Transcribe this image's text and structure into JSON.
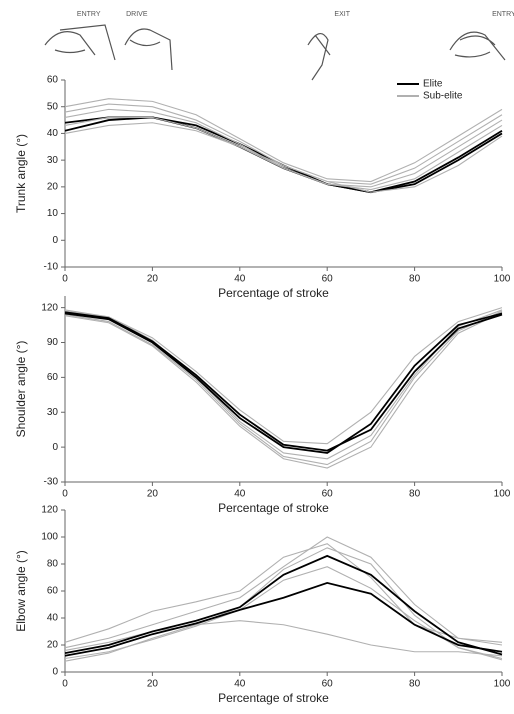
{
  "chart_data": [
    {
      "type": "line",
      "ylabel": "Trunk angle (°)",
      "xlabel": "Percentage of stroke",
      "annotations": [
        {
          "label": "ENTRY",
          "x": 2
        },
        {
          "label": "DRIVE",
          "x": 13
        },
        {
          "label": "EXIT",
          "x": 60
        },
        {
          "label": "ENTRY",
          "x": 97
        }
      ],
      "x": [
        0,
        10,
        20,
        30,
        40,
        50,
        60,
        70,
        80,
        90,
        100
      ],
      "xlim": [
        0,
        100
      ],
      "xticks": [
        0,
        20,
        40,
        60,
        80,
        100
      ],
      "ylim": [
        -10,
        60
      ],
      "yticks": [
        -10,
        0,
        10,
        20,
        30,
        40,
        50,
        60
      ],
      "legend": "upper right",
      "series": [
        {
          "name": "Elite",
          "color": "#000000",
          "values": [
            41,
            45,
            46,
            43,
            36,
            28,
            21,
            18,
            22,
            31,
            41
          ]
        },
        {
          "name": "Sub-elite",
          "color": "#b0b0b0",
          "values": [
            48,
            51,
            50,
            45,
            37,
            28,
            22,
            21,
            27,
            37,
            47
          ]
        },
        {
          "color": "#000000",
          "values": [
            44,
            46,
            46,
            42,
            35,
            27,
            21,
            18,
            21,
            30,
            40
          ]
        },
        {
          "color": "#b0b0b0",
          "values": [
            46,
            49,
            48,
            44,
            36,
            27,
            21,
            20,
            25,
            35,
            45
          ]
        },
        {
          "color": "#b0b0b0",
          "values": [
            43,
            46,
            46,
            42,
            35,
            27,
            21,
            19,
            23,
            33,
            43
          ]
        },
        {
          "color": "#b0b0b0",
          "values": [
            40,
            43,
            44,
            41,
            35,
            28,
            22,
            18,
            20,
            28,
            39
          ]
        },
        {
          "color": "#b0b0b0",
          "values": [
            50,
            53,
            52,
            47,
            38,
            29,
            23,
            22,
            29,
            39,
            49
          ]
        }
      ]
    },
    {
      "type": "line",
      "ylabel": "Shoulder angle (°)",
      "xlabel": "Percentage of stroke",
      "x": [
        0,
        10,
        20,
        30,
        40,
        50,
        60,
        70,
        80,
        90,
        100
      ],
      "xlim": [
        0,
        100
      ],
      "xticks": [
        0,
        20,
        40,
        60,
        80,
        100
      ],
      "ylim": [
        -30,
        130
      ],
      "yticks": [
        -30,
        0,
        30,
        60,
        90,
        120
      ],
      "series": [
        {
          "color": "#b0b0b0",
          "values": [
            118,
            112,
            92,
            60,
            22,
            -5,
            -10,
            10,
            62,
            104,
            118
          ]
        },
        {
          "color": "#b0b0b0",
          "values": [
            114,
            108,
            88,
            58,
            20,
            -8,
            -15,
            5,
            60,
            100,
            117
          ]
        },
        {
          "color": "#b0b0b0",
          "values": [
            117,
            112,
            94,
            65,
            32,
            5,
            3,
            30,
            78,
            108,
            120
          ]
        },
        {
          "color": "#b0b0b0",
          "values": [
            113,
            107,
            87,
            56,
            18,
            -10,
            -18,
            0,
            55,
            98,
            116
          ]
        },
        {
          "color": "#000000",
          "values": [
            115,
            110,
            90,
            60,
            25,
            0,
            -5,
            20,
            70,
            105,
            115
          ]
        },
        {
          "color": "#000000",
          "values": [
            116,
            111,
            91,
            62,
            28,
            2,
            -3,
            15,
            65,
            102,
            114
          ]
        }
      ]
    },
    {
      "type": "line",
      "ylabel": "Elbow angle (°)",
      "xlabel": "Percentage of stroke",
      "x": [
        0,
        10,
        20,
        30,
        40,
        50,
        60,
        70,
        80,
        90,
        100
      ],
      "xlim": [
        0,
        100
      ],
      "xticks": [
        0,
        20,
        40,
        60,
        80,
        100
      ],
      "ylim": [
        0,
        120
      ],
      "yticks": [
        0,
        20,
        40,
        60,
        80,
        100,
        120
      ],
      "series": [
        {
          "color": "#b0b0b0",
          "values": [
            18,
            25,
            35,
            45,
            55,
            78,
            100,
            85,
            50,
            25,
            20
          ]
        },
        {
          "color": "#b0b0b0",
          "values": [
            10,
            15,
            24,
            34,
            46,
            68,
            78,
            62,
            38,
            18,
            10
          ]
        },
        {
          "color": "#b0b0b0",
          "values": [
            22,
            32,
            45,
            52,
            60,
            85,
            95,
            70,
            35,
            25,
            22
          ]
        },
        {
          "color": "#b0b0b0",
          "values": [
            16,
            22,
            30,
            35,
            38,
            35,
            28,
            20,
            15,
            15,
            12
          ]
        },
        {
          "color": "#b0b0b0",
          "values": [
            8,
            14,
            25,
            35,
            48,
            76,
            92,
            80,
            42,
            18,
            9
          ]
        },
        {
          "color": "#000000",
          "values": [
            12,
            18,
            28,
            36,
            46,
            55,
            66,
            58,
            35,
            20,
            15
          ]
        },
        {
          "color": "#000000",
          "values": [
            14,
            20,
            30,
            38,
            48,
            72,
            86,
            72,
            45,
            22,
            13
          ]
        }
      ]
    }
  ]
}
